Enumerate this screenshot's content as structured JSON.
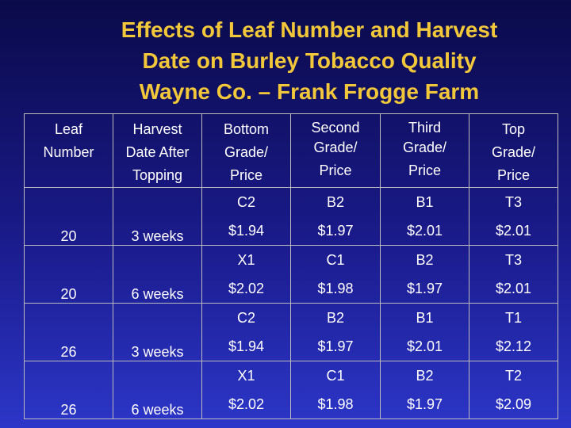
{
  "title": {
    "line1": "Effects of Leaf Number and Harvest",
    "line2": "Date on Burley Tobacco Quality",
    "line3": "Wayne Co. – Frank Frogge Farm"
  },
  "table": {
    "headers": [
      [
        "Leaf",
        "Number"
      ],
      [
        "Harvest",
        "Date After",
        "Topping"
      ],
      [
        "Bottom",
        "Grade/",
        "Price"
      ],
      [
        "Second",
        "Grade/",
        "Price"
      ],
      [
        "Third",
        "Grade/",
        "Price"
      ],
      [
        "Top",
        "Grade/",
        "Price"
      ]
    ],
    "rows": [
      {
        "leaf": "20",
        "harvest": "3 weeks",
        "cells": [
          [
            "C2",
            "$1.94"
          ],
          [
            "B2",
            "$1.97"
          ],
          [
            "B1",
            "$2.01"
          ],
          [
            "T3",
            "$2.01"
          ]
        ]
      },
      {
        "leaf": "20",
        "harvest": "6 weeks",
        "cells": [
          [
            "X1",
            "$2.02"
          ],
          [
            "C1",
            "$1.98"
          ],
          [
            "B2",
            "$1.97"
          ],
          [
            "T3",
            "$2.01"
          ]
        ]
      },
      {
        "leaf": "26",
        "harvest": "3 weeks",
        "cells": [
          [
            "C2",
            "$1.94"
          ],
          [
            "B2",
            "$1.97"
          ],
          [
            "B1",
            "$2.01"
          ],
          [
            "T1",
            "$2.12"
          ]
        ]
      },
      {
        "leaf": "26",
        "harvest": "6 weeks",
        "cells": [
          [
            "X1",
            "$2.02"
          ],
          [
            "C1",
            "$1.98"
          ],
          [
            "B2",
            "$1.97"
          ],
          [
            "T2",
            "$2.09"
          ]
        ]
      }
    ]
  }
}
